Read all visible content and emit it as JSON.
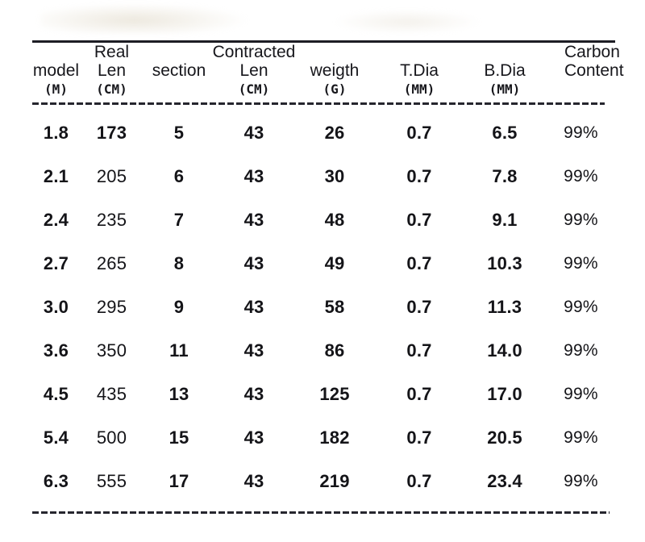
{
  "chart_data": {
    "type": "table",
    "title": "",
    "columns": [
      "model (M)",
      "Real Len (CM)",
      "section",
      "Contracted Len (CM)",
      "weigth (G)",
      "T.Dia (MM)",
      "B.Dia (MM)",
      "Carbon Content"
    ],
    "rows": [
      [
        "1.8",
        "173",
        "5",
        "43",
        "26",
        "0.7",
        "6.5",
        "99%"
      ],
      [
        "2.1",
        "205",
        "6",
        "43",
        "30",
        "0.7",
        "7.8",
        "99%"
      ],
      [
        "2.4",
        "235",
        "7",
        "43",
        "48",
        "0.7",
        "9.1",
        "99%"
      ],
      [
        "2.7",
        "265",
        "8",
        "43",
        "49",
        "0.7",
        "10.3",
        "99%"
      ],
      [
        "3.0",
        "295",
        "9",
        "43",
        "58",
        "0.7",
        "11.3",
        "99%"
      ],
      [
        "3.6",
        "350",
        "11",
        "43",
        "86",
        "0.7",
        "14.0",
        "99%"
      ],
      [
        "4.5",
        "435",
        "13",
        "43",
        "125",
        "0.7",
        "17.0",
        "99%"
      ],
      [
        "5.4",
        "500",
        "15",
        "43",
        "182",
        "0.7",
        "20.5",
        "99%"
      ],
      [
        "6.3",
        "555",
        "17",
        "43",
        "219",
        "0.7",
        "23.4",
        "99%"
      ]
    ],
    "layout": {
      "top_rule": "solid",
      "header_divider": "dashed",
      "bottom_rule": "dashed",
      "grid": "off"
    }
  },
  "header": {
    "columns": [
      {
        "label": "model",
        "unit": "(M)"
      },
      {
        "label": "Real Len",
        "unit": "(CM)"
      },
      {
        "label": "section",
        "unit": ""
      },
      {
        "label": "Contracted Len",
        "unit": "(CM)"
      },
      {
        "label": "weigth",
        "unit": "(G)"
      },
      {
        "label": "T.Dia",
        "unit": "(MM)"
      },
      {
        "label": "B.Dia",
        "unit": "(MM)"
      },
      {
        "label": "Carbon Content",
        "unit": ""
      }
    ]
  },
  "colors": {
    "background": "#ffffff",
    "text": "#141418",
    "rule": "#1d1d24",
    "dash": "#26262e"
  }
}
